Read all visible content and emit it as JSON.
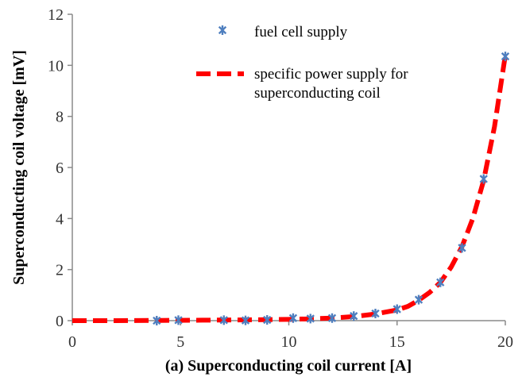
{
  "chart_data": {
    "type": "line",
    "title": "",
    "xlabel": "(a) Superconducting coil current [A]",
    "ylabel": "Superconducting coil voltage [mV]",
    "xlim": [
      0,
      20
    ],
    "ylim": [
      0,
      12
    ],
    "xticks": [
      "0",
      "5",
      "10",
      "15",
      "20"
    ],
    "yticks": [
      "0",
      "2",
      "4",
      "6",
      "8",
      "10",
      "12"
    ],
    "grid": false,
    "legend_position": "top-center",
    "series": [
      {
        "name": "fuel cell supply",
        "style": "markers",
        "marker": "asterisk",
        "color": "#4f7fbf",
        "x": [
          3.9,
          4.9,
          7.0,
          8.0,
          9.0,
          10.2,
          11.0,
          12.0,
          13.0,
          14.0,
          15.0,
          16.0,
          17.0,
          18.0,
          19.0,
          20.0
        ],
        "y": [
          0.0,
          0.02,
          0.02,
          0.01,
          0.03,
          0.1,
          0.08,
          0.1,
          0.18,
          0.28,
          0.45,
          0.82,
          1.5,
          2.85,
          5.55,
          10.35
        ]
      },
      {
        "name": "specific power supply for superconducting coil",
        "name_lines": [
          "specific power supply for",
          "superconducting coil"
        ],
        "style": "dashed-line",
        "color": "#ff0000",
        "x": [
          0,
          2,
          4,
          6,
          8,
          10,
          11,
          12,
          13,
          14,
          15,
          15.5,
          16,
          16.5,
          17,
          17.5,
          18,
          18.5,
          19,
          19.5,
          20
        ],
        "y": [
          0.0,
          0.0,
          0.01,
          0.02,
          0.03,
          0.05,
          0.07,
          0.1,
          0.16,
          0.26,
          0.42,
          0.56,
          0.8,
          1.1,
          1.5,
          2.1,
          2.9,
          4.0,
          5.5,
          7.6,
          10.4
        ]
      }
    ]
  }
}
